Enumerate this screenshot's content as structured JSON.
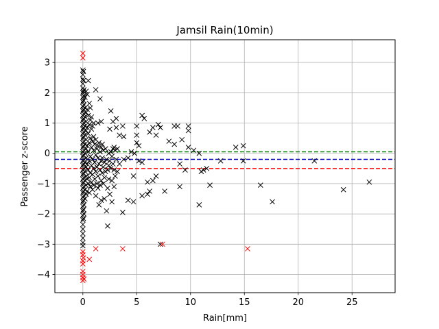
{
  "chart_data": {
    "type": "scatter",
    "title": "Jamsil Rain(10min)",
    "xlabel": "Rain[mm]",
    "ylabel": "Passenger z-score",
    "xlim": [
      -2.6,
      29.0
    ],
    "ylim": [
      -4.6,
      3.75
    ],
    "xticks": [
      0,
      5,
      10,
      15,
      20,
      25
    ],
    "yticks": [
      -4,
      -3,
      -2,
      -1,
      0,
      1,
      2,
      3
    ],
    "grid": true,
    "marker": "x",
    "colors": {
      "normal": "#000000",
      "outlier": "#ff0000",
      "line_upper": "#008000",
      "line_mean": "#0000bf",
      "line_lower": "#ff0000",
      "grid": "#b0b0b0"
    },
    "hlines": [
      {
        "name": "upper",
        "y": 0.05,
        "color": "#008000"
      },
      {
        "name": "mean",
        "y": -0.2,
        "color": "#0000bf"
      },
      {
        "name": "lower",
        "y": -0.5,
        "color": "#ff0000"
      }
    ],
    "series": [
      {
        "name": "normal",
        "color": "#000000",
        "points": [
          [
            0,
            2.75
          ],
          [
            0,
            2.6
          ],
          [
            0,
            2.45
          ],
          [
            0,
            2.3
          ],
          [
            0,
            2.15
          ],
          [
            0,
            2.0
          ],
          [
            0,
            1.85
          ],
          [
            0,
            1.7
          ],
          [
            0,
            1.55
          ],
          [
            0,
            1.4
          ],
          [
            0,
            1.25
          ],
          [
            0,
            1.1
          ],
          [
            0,
            0.95
          ],
          [
            0,
            0.8
          ],
          [
            0,
            0.65
          ],
          [
            0,
            0.5
          ],
          [
            0,
            0.35
          ],
          [
            0,
            0.2
          ],
          [
            0,
            0.05
          ],
          [
            0,
            -0.1
          ],
          [
            0,
            -0.25
          ],
          [
            0,
            -0.4
          ],
          [
            0,
            -0.55
          ],
          [
            0,
            -0.7
          ],
          [
            0,
            -0.85
          ],
          [
            0,
            -1.0
          ],
          [
            0,
            -1.15
          ],
          [
            0,
            -1.3
          ],
          [
            0,
            -1.45
          ],
          [
            0,
            -1.6
          ],
          [
            0,
            -1.75
          ],
          [
            0,
            -1.9
          ],
          [
            0,
            -2.05
          ],
          [
            0,
            -2.2
          ],
          [
            0,
            -2.35
          ],
          [
            0,
            -2.5
          ],
          [
            0,
            -2.65
          ],
          [
            0,
            -2.8
          ],
          [
            0,
            -2.95
          ],
          [
            0,
            -3.05
          ],
          [
            0.05,
            2.7
          ],
          [
            0.05,
            2.4
          ],
          [
            0.05,
            2.05
          ],
          [
            0.05,
            1.75
          ],
          [
            0.05,
            1.45
          ],
          [
            0.05,
            1.15
          ],
          [
            0.05,
            0.85
          ],
          [
            0.05,
            0.55
          ],
          [
            0.05,
            0.25
          ],
          [
            0.05,
            -0.05
          ],
          [
            0.05,
            -0.35
          ],
          [
            0.05,
            -0.65
          ],
          [
            0.05,
            -0.95
          ],
          [
            0.05,
            -1.25
          ],
          [
            0.05,
            -1.55
          ],
          [
            0.05,
            -1.85
          ],
          [
            0.05,
            -2.15
          ],
          [
            0.1,
            2.1
          ],
          [
            0.1,
            1.9
          ],
          [
            0.1,
            1.6
          ],
          [
            0.1,
            1.3
          ],
          [
            0.1,
            1.0
          ],
          [
            0.1,
            0.7
          ],
          [
            0.1,
            0.4
          ],
          [
            0.1,
            0.1
          ],
          [
            0.1,
            -0.2
          ],
          [
            0.1,
            -0.5
          ],
          [
            0.1,
            -0.8
          ],
          [
            0.1,
            -1.1
          ],
          [
            0.1,
            -1.4
          ],
          [
            0.1,
            -1.7
          ],
          [
            0.1,
            -2.0
          ],
          [
            0.2,
            1.85
          ],
          [
            0.2,
            1.5
          ],
          [
            0.2,
            1.2
          ],
          [
            0.2,
            0.9
          ],
          [
            0.2,
            0.6
          ],
          [
            0.2,
            0.3
          ],
          [
            0.2,
            0.0
          ],
          [
            0.2,
            -0.3
          ],
          [
            0.2,
            -0.6
          ],
          [
            0.2,
            -0.9
          ],
          [
            0.2,
            -1.2
          ],
          [
            0.2,
            -1.5
          ],
          [
            0.3,
            2.05
          ],
          [
            0.3,
            1.35
          ],
          [
            0.3,
            1.05
          ],
          [
            0.3,
            0.75
          ],
          [
            0.3,
            0.45
          ],
          [
            0.3,
            0.15
          ],
          [
            0.3,
            -0.15
          ],
          [
            0.3,
            -0.45
          ],
          [
            0.3,
            -0.75
          ],
          [
            0.3,
            -1.05
          ],
          [
            0.3,
            -1.35
          ],
          [
            0.4,
            1.95
          ],
          [
            0.4,
            1.45
          ],
          [
            0.4,
            0.85
          ],
          [
            0.4,
            0.25
          ],
          [
            0.4,
            -0.35
          ],
          [
            0.4,
            -0.85
          ],
          [
            0.4,
            -1.25
          ],
          [
            0.5,
            2.4
          ],
          [
            0.5,
            1.25
          ],
          [
            0.5,
            0.65
          ],
          [
            0.5,
            0.05
          ],
          [
            0.5,
            -0.55
          ],
          [
            0.5,
            -1.0
          ],
          [
            0.6,
            1.65
          ],
          [
            0.6,
            0.95
          ],
          [
            0.6,
            0.35
          ],
          [
            0.6,
            -0.25
          ],
          [
            0.6,
            -0.8
          ],
          [
            0.6,
            -1.3
          ],
          [
            0.7,
            1.5
          ],
          [
            0.7,
            1.1
          ],
          [
            0.7,
            0.5
          ],
          [
            0.7,
            -0.1
          ],
          [
            0.7,
            -0.65
          ],
          [
            0.7,
            -1.1
          ],
          [
            0.8,
            1.2
          ],
          [
            0.8,
            0.8
          ],
          [
            0.8,
            0.2
          ],
          [
            0.8,
            -0.4
          ],
          [
            0.8,
            -0.95
          ],
          [
            0.9,
            0.9
          ],
          [
            0.9,
            0.4
          ],
          [
            0.9,
            -0.2
          ],
          [
            0.9,
            -0.7
          ],
          [
            0.9,
            -1.2
          ],
          [
            1.0,
            1.0
          ],
          [
            1.0,
            0.55
          ],
          [
            1.0,
            0.1
          ],
          [
            1.0,
            -0.5
          ],
          [
            1.0,
            -1.05
          ],
          [
            1.1,
            0.3
          ],
          [
            1.1,
            -0.3
          ],
          [
            1.1,
            -0.85
          ],
          [
            1.2,
            2.1
          ],
          [
            1.2,
            0.45
          ],
          [
            1.2,
            -0.05
          ],
          [
            1.2,
            -0.6
          ],
          [
            1.2,
            -1.4
          ],
          [
            1.3,
            0.15
          ],
          [
            1.3,
            -0.45
          ],
          [
            1.3,
            -1.0
          ],
          [
            1.4,
            1.0
          ],
          [
            1.4,
            0.25
          ],
          [
            1.4,
            -0.15
          ],
          [
            1.4,
            -0.75
          ],
          [
            1.4,
            -1.15
          ],
          [
            1.5,
            0.35
          ],
          [
            1.5,
            -0.35
          ],
          [
            1.5,
            -1.7
          ],
          [
            1.6,
            1.8
          ],
          [
            1.6,
            0.05
          ],
          [
            1.6,
            -0.55
          ],
          [
            1.6,
            -1.05
          ],
          [
            1.7,
            1.05
          ],
          [
            1.7,
            0.2
          ],
          [
            1.7,
            -0.25
          ],
          [
            1.7,
            -0.9
          ],
          [
            1.7,
            -1.55
          ],
          [
            1.8,
            0.3
          ],
          [
            1.8,
            -0.15
          ],
          [
            1.8,
            -0.65
          ],
          [
            1.9,
            0.1
          ],
          [
            1.9,
            -0.45
          ],
          [
            1.9,
            -1.0
          ],
          [
            2.0,
            -0.3
          ],
          [
            2.0,
            -0.8
          ],
          [
            2.0,
            -1.5
          ],
          [
            2.1,
            0.15
          ],
          [
            2.1,
            -0.6
          ],
          [
            2.2,
            -0.2
          ],
          [
            2.2,
            -1.9
          ],
          [
            2.3,
            -0.55
          ],
          [
            2.3,
            -1.15
          ],
          [
            2.3,
            -2.4
          ],
          [
            2.4,
            0.0
          ],
          [
            2.4,
            -0.4
          ],
          [
            2.4,
            -0.85
          ],
          [
            2.5,
            0.8
          ],
          [
            2.5,
            -0.25
          ],
          [
            2.5,
            -1.35
          ],
          [
            2.6,
            1.4
          ],
          [
            2.6,
            0.05
          ],
          [
            2.6,
            -0.5
          ],
          [
            2.7,
            -0.1
          ],
          [
            2.7,
            -0.9
          ],
          [
            2.7,
            -1.6
          ],
          [
            2.8,
            1.05
          ],
          [
            2.8,
            0.15
          ],
          [
            2.8,
            -0.35
          ],
          [
            2.9,
            0.2
          ],
          [
            2.9,
            -0.55
          ],
          [
            2.9,
            -1.1
          ],
          [
            3.0,
            0.1
          ],
          [
            3.0,
            -0.75
          ],
          [
            3.1,
            1.15
          ],
          [
            3.1,
            0.85
          ],
          [
            3.1,
            -0.2
          ],
          [
            3.2,
            0.15
          ],
          [
            3.2,
            -0.6
          ],
          [
            3.4,
            0.6
          ],
          [
            3.4,
            -0.35
          ],
          [
            3.7,
            0.9
          ],
          [
            3.7,
            -1.95
          ],
          [
            3.8,
            0.55
          ],
          [
            3.8,
            -0.2
          ],
          [
            4.2,
            -1.55
          ],
          [
            4.2,
            -0.15
          ],
          [
            4.5,
            0.05
          ],
          [
            4.7,
            -0.75
          ],
          [
            4.7,
            -1.6
          ],
          [
            4.8,
            0.0
          ],
          [
            5.0,
            0.9
          ],
          [
            5.0,
            0.6
          ],
          [
            5.0,
            0.35
          ],
          [
            5.2,
            0.25
          ],
          [
            5.2,
            -0.25
          ],
          [
            5.5,
            1.25
          ],
          [
            5.5,
            -0.3
          ],
          [
            5.5,
            -1.4
          ],
          [
            5.7,
            1.15
          ],
          [
            6.0,
            -0.95
          ],
          [
            6.0,
            -1.35
          ],
          [
            6.2,
            0.7
          ],
          [
            6.2,
            -1.25
          ],
          [
            6.5,
            0.85
          ],
          [
            6.5,
            -0.9
          ],
          [
            6.8,
            0.6
          ],
          [
            6.8,
            -0.75
          ],
          [
            7.0,
            0.95
          ],
          [
            7.2,
            0.85
          ],
          [
            7.2,
            -3.0
          ],
          [
            7.6,
            -1.25
          ],
          [
            8.0,
            0.4
          ],
          [
            8.5,
            0.9
          ],
          [
            8.5,
            0.3
          ],
          [
            8.8,
            0.9
          ],
          [
            9.0,
            -1.1
          ],
          [
            9.0,
            -0.35
          ],
          [
            9.2,
            0.45
          ],
          [
            9.5,
            -0.55
          ],
          [
            9.8,
            0.9
          ],
          [
            9.8,
            0.75
          ],
          [
            9.8,
            0.2
          ],
          [
            10.3,
            0.1
          ],
          [
            10.8,
            -1.7
          ],
          [
            10.8,
            0.0
          ],
          [
            11.0,
            -0.6
          ],
          [
            11.2,
            -0.55
          ],
          [
            11.5,
            -0.5
          ],
          [
            11.8,
            -1.05
          ],
          [
            12.8,
            -0.25
          ],
          [
            14.2,
            0.2
          ],
          [
            14.9,
            0.25
          ],
          [
            14.9,
            -0.25
          ],
          [
            16.5,
            -1.05
          ],
          [
            17.6,
            -1.6
          ],
          [
            21.5,
            -0.25
          ],
          [
            24.2,
            -1.2
          ],
          [
            26.6,
            -0.95
          ]
        ]
      },
      {
        "name": "outlier",
        "color": "#ff0000",
        "points": [
          [
            0,
            3.3
          ],
          [
            0,
            3.15
          ],
          [
            0,
            -3.25
          ],
          [
            0,
            -3.35
          ],
          [
            0,
            -3.55
          ],
          [
            0,
            -3.65
          ],
          [
            0,
            -3.9
          ],
          [
            0,
            -4.0
          ],
          [
            0,
            -4.1
          ],
          [
            0,
            -4.2
          ],
          [
            0.05,
            -3.45
          ],
          [
            0.1,
            -4.15
          ],
          [
            0.6,
            -3.5
          ],
          [
            1.2,
            -3.15
          ],
          [
            3.7,
            -3.15
          ],
          [
            7.4,
            -3.0
          ],
          [
            15.3,
            -3.15
          ]
        ]
      }
    ]
  }
}
